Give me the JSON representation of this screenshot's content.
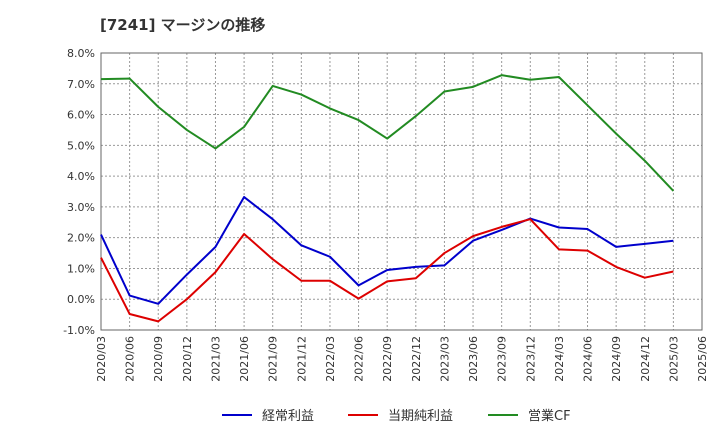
{
  "chart_data": {
    "type": "line",
    "title": "[7241]  マージンの推移",
    "xlabel": "",
    "ylabel": "",
    "ylim": [
      -1.0,
      8.0
    ],
    "yticks": [
      -1.0,
      0.0,
      1.0,
      2.0,
      3.0,
      4.0,
      5.0,
      6.0,
      7.0,
      8.0
    ],
    "ytick_labels": [
      "-1.0%",
      "0.0%",
      "1.0%",
      "2.0%",
      "3.0%",
      "4.0%",
      "5.0%",
      "6.0%",
      "7.0%",
      "8.0%"
    ],
    "categories": [
      "2020/03",
      "2020/06",
      "2020/09",
      "2020/12",
      "2021/03",
      "2021/06",
      "2021/09",
      "2021/12",
      "2022/03",
      "2022/06",
      "2022/09",
      "2022/12",
      "2023/03",
      "2023/06",
      "2023/09",
      "2023/12",
      "2024/03",
      "2024/06",
      "2024/09",
      "2024/12",
      "2025/03",
      "2025/06"
    ],
    "grid": true,
    "legend_position": "bottom",
    "series": [
      {
        "name": "経常利益",
        "color": "#0000cc",
        "values": [
          2.1,
          0.12,
          -0.15,
          0.8,
          1.7,
          3.32,
          2.6,
          1.75,
          1.38,
          0.45,
          0.95,
          1.05,
          1.1,
          1.9,
          2.25,
          2.62,
          2.33,
          2.28,
          1.7,
          1.8,
          1.9,
          null
        ]
      },
      {
        "name": "当期純利益",
        "color": "#dd0000",
        "values": [
          1.35,
          -0.48,
          -0.72,
          0.0,
          0.88,
          2.12,
          1.3,
          0.6,
          0.6,
          0.02,
          0.58,
          0.68,
          1.5,
          2.05,
          2.35,
          2.6,
          1.62,
          1.58,
          1.05,
          0.7,
          0.9,
          null
        ]
      },
      {
        "name": "営業CF",
        "color": "#228b22",
        "values": [
          7.15,
          7.17,
          6.25,
          5.5,
          4.9,
          5.6,
          6.93,
          6.65,
          6.2,
          5.82,
          5.22,
          5.95,
          6.75,
          6.9,
          7.28,
          7.13,
          7.22,
          6.3,
          5.38,
          4.5,
          3.52,
          null
        ]
      }
    ]
  }
}
